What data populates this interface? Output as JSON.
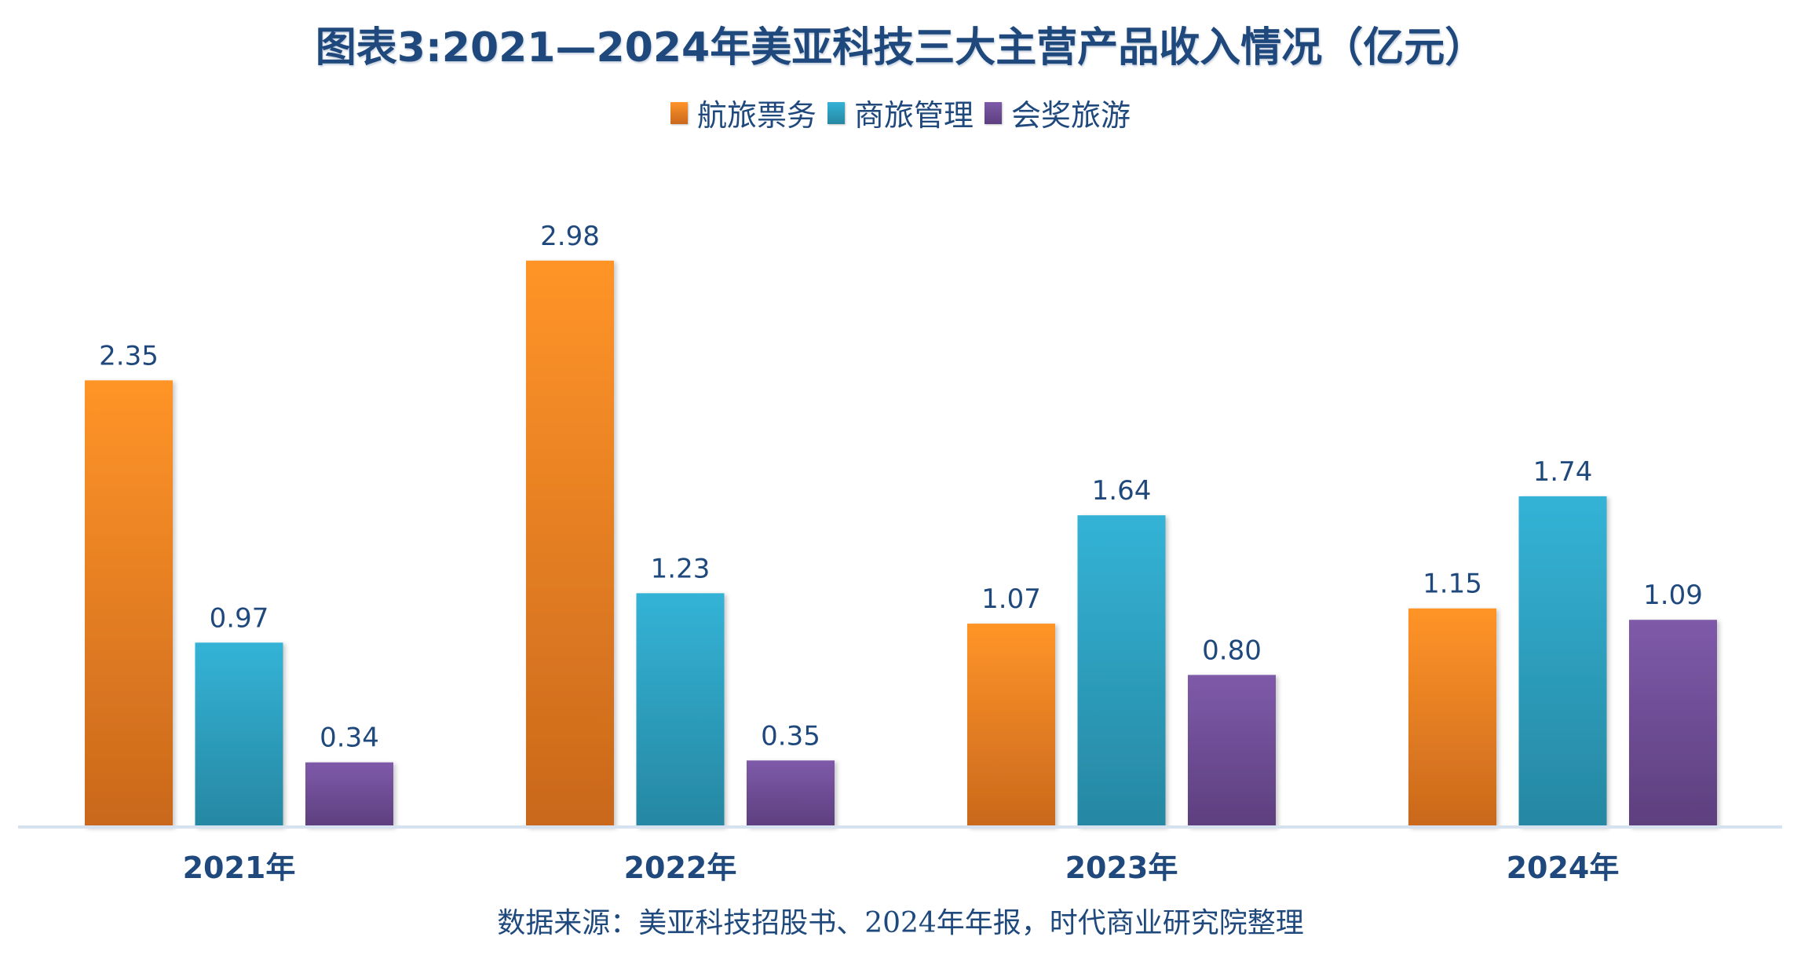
{
  "chart_data": {
    "type": "bar",
    "title": "图表3:2021—2024年美亚科技三大主营产品收入情况（亿元）",
    "xlabel": "",
    "ylabel": "",
    "unit": "亿元",
    "ylim": [
      0,
      3.2
    ],
    "grid": false,
    "legend_position": "top-center",
    "categories": [
      "2021年",
      "2022年",
      "2023年",
      "2024年"
    ],
    "series": [
      {
        "name": "航旅票务",
        "color_top": "#ff9428",
        "color_bottom": "#c9681d",
        "values": [
          2.35,
          2.98,
          1.07,
          1.15
        ],
        "labels": [
          "2.35",
          "2.98",
          "1.07",
          "1.15"
        ]
      },
      {
        "name": "商旅管理",
        "color_top": "#34b3d6",
        "color_bottom": "#2687a2",
        "values": [
          0.97,
          1.23,
          1.64,
          1.74
        ],
        "labels": [
          "0.97",
          "1.23",
          "1.64",
          "1.74"
        ]
      },
      {
        "name": "会奖旅游",
        "color_top": "#7e5aa9",
        "color_bottom": "#5d3f7e",
        "values": [
          0.34,
          0.35,
          0.8,
          1.09
        ],
        "labels": [
          "0.34",
          "0.35",
          "0.80",
          "1.09"
        ]
      }
    ],
    "source": "数据来源：美亚科技招股书、2024年年报，时代商业研究院整理"
  },
  "colors": {
    "text": "#1f497d",
    "axis_line": "#d6e2f0"
  }
}
